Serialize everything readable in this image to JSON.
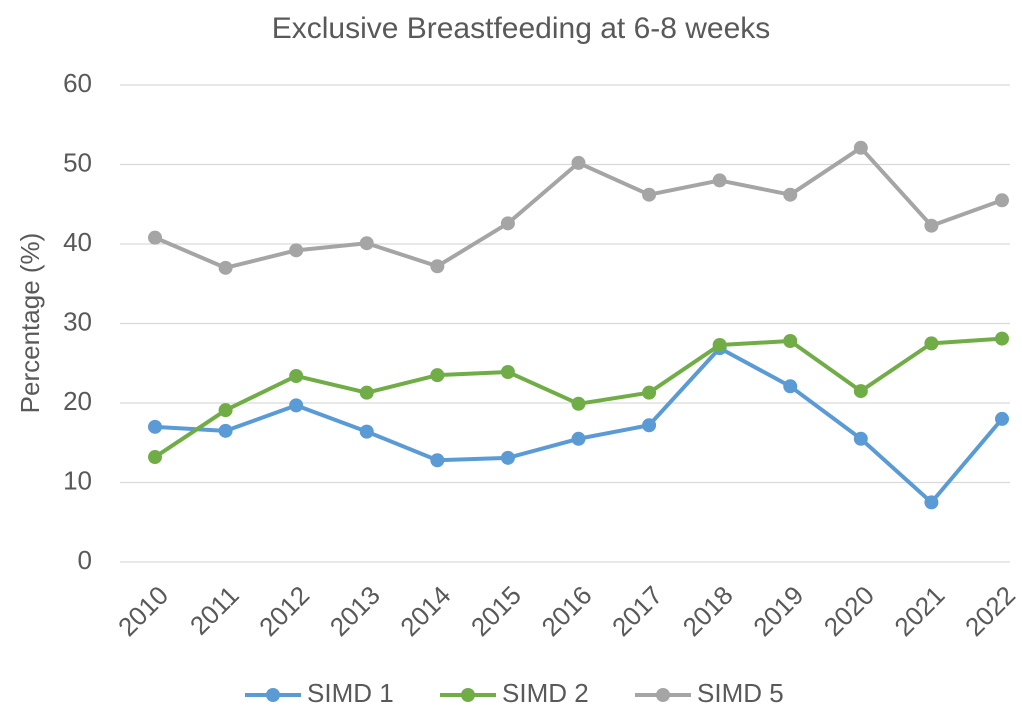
{
  "chart_data": {
    "type": "line",
    "title": "Exclusive Breastfeeding at 6-8 weeks",
    "y_label": "Percentage (%)",
    "categories": [
      "2010",
      "2011",
      "2012",
      "2013",
      "2014",
      "2015",
      "2016",
      "2017",
      "2018",
      "2019",
      "2020",
      "2021",
      "2022"
    ],
    "series": [
      {
        "name": "SIMD 1",
        "color": "#5b9bd5",
        "values": [
          17.0,
          16.5,
          19.7,
          16.4,
          12.8,
          13.1,
          15.5,
          17.2,
          26.9,
          22.1,
          15.5,
          7.5,
          18.0
        ]
      },
      {
        "name": "SIMD 2",
        "color": "#70ad47",
        "values": [
          13.2,
          19.1,
          23.4,
          21.3,
          23.5,
          23.9,
          19.9,
          21.3,
          27.3,
          27.8,
          21.5,
          27.5,
          28.1
        ]
      },
      {
        "name": "SIMD 5",
        "color": "#a5a5a5",
        "values": [
          40.8,
          37.0,
          39.2,
          40.1,
          37.2,
          42.6,
          50.2,
          46.2,
          48.0,
          46.2,
          52.1,
          42.3,
          45.5
        ]
      }
    ],
    "ylim": [
      0,
      60
    ],
    "yticks": [
      0,
      10,
      20,
      30,
      40,
      50,
      60
    ],
    "grid": true,
    "legend": "bottom"
  }
}
